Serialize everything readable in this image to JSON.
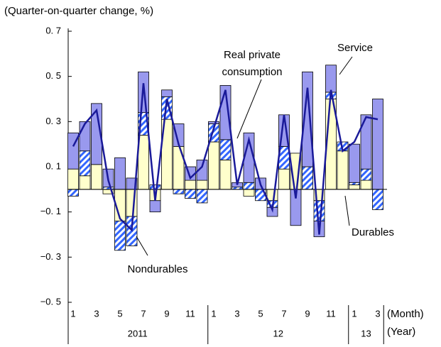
{
  "chart_data": {
    "type": "stacked-bar-line",
    "title": "(Quarter-on-quarter change, %)",
    "categories": [
      "1",
      null,
      "3",
      null,
      "5",
      null,
      "7",
      null,
      "9",
      null,
      "11",
      null,
      "1",
      null,
      "3",
      null,
      "5",
      null,
      "7",
      null,
      "9",
      null,
      "11",
      null,
      "1",
      null,
      "3"
    ],
    "years": [
      {
        "label": "2011",
        "months": 12
      },
      {
        "label": "12",
        "months": 12
      },
      {
        "label": "13",
        "months": 3
      }
    ],
    "x_label": "(Month)",
    "year_label": "(Year)",
    "series": [
      {
        "name": "Nondurables",
        "color": "#ffffcc",
        "values": [
          0.09,
          0.06,
          0.11,
          -0.02,
          -0.14,
          -0.12,
          0.24,
          -0.05,
          0.31,
          0.19,
          0.04,
          0.04,
          0.21,
          0.13,
          0.0,
          -0.03,
          0.0,
          -0.05,
          0.09,
          0.16,
          0.0,
          -0.05,
          0.4,
          0.17,
          0.02,
          0.04,
          0.0
        ]
      },
      {
        "name": "Durables",
        "color": "#3366ff",
        "values": [
          -0.03,
          0.11,
          0.0,
          0.01,
          -0.13,
          -0.13,
          0.1,
          0.02,
          0.1,
          -0.02,
          -0.04,
          -0.06,
          0.08,
          0.09,
          0.01,
          0.03,
          -0.05,
          -0.03,
          0.1,
          0.0,
          0.1,
          -0.09,
          0.03,
          0.04,
          0.01,
          0.05,
          -0.09
        ]
      },
      {
        "name": "Service",
        "color": "#9999ee",
        "values": [
          0.16,
          0.13,
          0.27,
          0.08,
          0.14,
          0.05,
          0.18,
          -0.05,
          0.03,
          0.1,
          0.06,
          0.09,
          0.01,
          0.24,
          0.02,
          0.22,
          0.05,
          -0.04,
          0.14,
          -0.16,
          0.42,
          -0.07,
          0.12,
          0.0,
          0.17,
          0.24,
          0.4
        ]
      },
      {
        "name": "Real private consumption",
        "type": "line",
        "color": "#1a1a99",
        "values": [
          0.19,
          0.29,
          0.35,
          0.04,
          -0.13,
          -0.18,
          0.47,
          -0.05,
          0.4,
          0.2,
          0.05,
          0.1,
          0.27,
          0.44,
          0.02,
          0.22,
          0.02,
          -0.09,
          0.33,
          -0.04,
          0.45,
          -0.2,
          0.44,
          0.17,
          0.21,
          0.32,
          0.31
        ]
      }
    ],
    "annotations": [
      [
        "Real private",
        "consumption"
      ],
      [
        "Service"
      ],
      [
        "Durables"
      ],
      [
        "Nondurables"
      ]
    ],
    "ylim": [
      -0.5,
      0.7
    ],
    "yticks": [
      {
        "value": 0.7,
        "label": "0. 7"
      },
      {
        "value": 0.5,
        "label": "0. 5"
      },
      {
        "value": 0.3,
        "label": "0. 3"
      },
      {
        "value": 0.1,
        "label": "0. 1"
      },
      {
        "value": -0.1,
        "label": "−0. 1"
      },
      {
        "value": -0.3,
        "label": "−0. 3"
      },
      {
        "value": -0.5,
        "label": "−0. 5"
      }
    ]
  }
}
